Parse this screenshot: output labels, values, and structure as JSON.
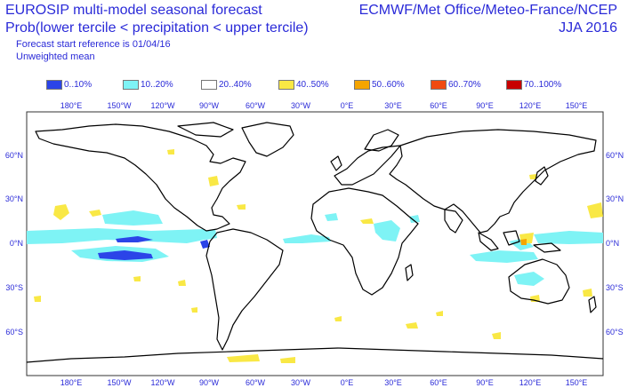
{
  "header": {
    "title": "EUROSIP multi-model seasonal forecast",
    "subtitle": "Prob(lower tercile < precipitation < upper tercile)",
    "reference": "Forecast start reference is 01/04/16",
    "mean": "Unweighted mean",
    "centres": "ECMWF/Met Office/Meteo-France/NCEP",
    "season": "JJA 2016"
  },
  "legend": [
    {
      "label": "0..10%",
      "color": "#2b44e8"
    },
    {
      "label": "10..20%",
      "color": "#7ef3f5"
    },
    {
      "label": "20..40%",
      "color": "#ffffff"
    },
    {
      "label": "40..50%",
      "color": "#f9e845"
    },
    {
      "label": "50..60%",
      "color": "#f5a500"
    },
    {
      "label": "60..70%",
      "color": "#f04a10"
    },
    {
      "label": "70..100%",
      "color": "#c80000"
    }
  ],
  "axes": {
    "lon_ticks": [
      "180°E",
      "150°W",
      "120°W",
      "90°W",
      "60°W",
      "30°W",
      "0°E",
      "30°E",
      "60°E",
      "90°E",
      "120°E",
      "150°E"
    ],
    "lat_ticks": [
      "60°N",
      "30°N",
      "0°N",
      "30°S",
      "60°S"
    ]
  },
  "colors": {
    "coast": "#000000",
    "text": "#2a2ad8",
    "frame": "#333333"
  }
}
